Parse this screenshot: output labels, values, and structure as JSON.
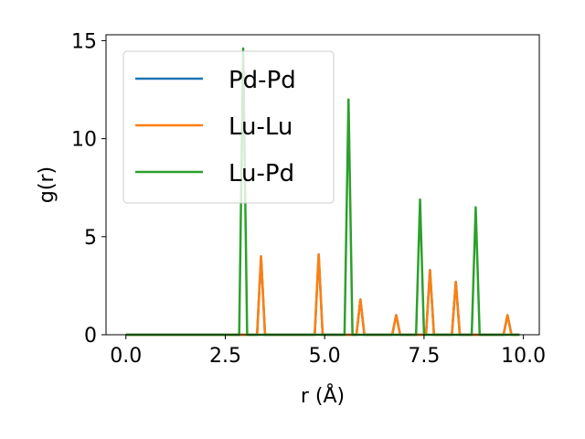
{
  "chart_data": {
    "type": "line",
    "xlabel": "r (Å)",
    "ylabel": "g(r)",
    "xlim": [
      -0.5,
      10.4
    ],
    "ylim": [
      0,
      15.3
    ],
    "xticks": [
      0.0,
      2.5,
      5.0,
      7.5,
      10.0
    ],
    "xtick_labels": [
      "0.0",
      "2.5",
      "5.0",
      "7.5",
      "10.0"
    ],
    "yticks": [
      0,
      5,
      10,
      15
    ],
    "ytick_labels": [
      "0",
      "5",
      "10",
      "15"
    ],
    "grid": false,
    "legend_position": "upper-left",
    "series": [
      {
        "name": "Pd-Pd",
        "color": "#1f77b4",
        "x": [
          0.0,
          3.3,
          3.4,
          3.5,
          4.75,
          4.85,
          4.95,
          5.8,
          5.9,
          6.0,
          6.7,
          6.8,
          6.9,
          7.55,
          7.65,
          7.75,
          8.2,
          8.3,
          8.4,
          9.5,
          9.6,
          9.7,
          9.9
        ],
        "y": [
          0,
          0,
          4.0,
          0,
          0,
          4.1,
          0,
          0,
          1.8,
          0,
          0,
          1.0,
          0,
          0,
          3.3,
          0,
          0,
          2.7,
          0,
          0,
          1.0,
          0,
          0
        ]
      },
      {
        "name": "Lu-Lu",
        "color": "#ff7f0e",
        "x": [
          0.0,
          3.3,
          3.4,
          3.5,
          4.75,
          4.85,
          4.95,
          5.8,
          5.9,
          6.0,
          6.7,
          6.8,
          6.9,
          7.55,
          7.65,
          7.75,
          8.2,
          8.3,
          8.4,
          9.5,
          9.6,
          9.7,
          9.9
        ],
        "y": [
          0,
          0,
          4.0,
          0,
          0,
          4.1,
          0,
          0,
          1.8,
          0,
          0,
          1.0,
          0,
          0,
          3.3,
          0,
          0,
          2.7,
          0,
          0,
          1.0,
          0,
          0
        ]
      },
      {
        "name": "Lu-Pd",
        "color": "#2ca02c",
        "x": [
          0.0,
          2.85,
          2.95,
          3.05,
          5.5,
          5.6,
          5.7,
          7.3,
          7.4,
          7.5,
          8.7,
          8.8,
          8.9,
          9.9
        ],
        "y": [
          0,
          0,
          14.6,
          0,
          0,
          12.0,
          0,
          0,
          6.9,
          0,
          0,
          6.5,
          0,
          0
        ]
      }
    ]
  }
}
